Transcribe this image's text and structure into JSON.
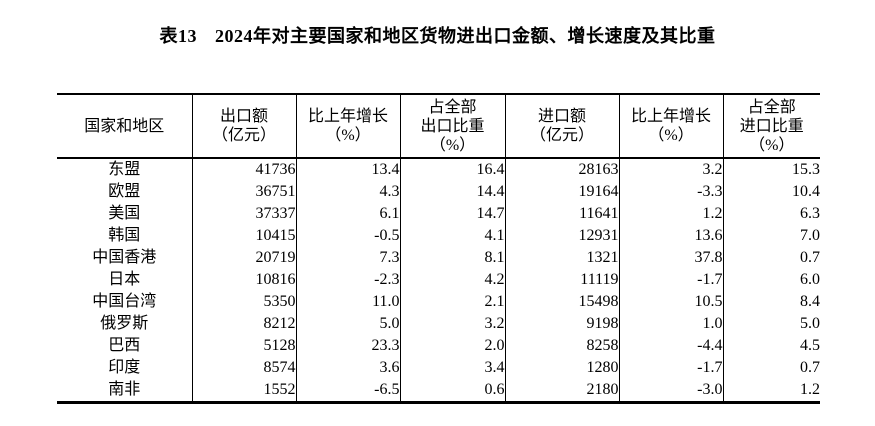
{
  "title": {
    "label": "表13",
    "text": "2024年对主要国家和地区货物进出口金额、增长速度及其比重"
  },
  "table": {
    "columns": [
      {
        "id": "region",
        "lines": [
          "国家和地区"
        ]
      },
      {
        "id": "export-value",
        "lines": [
          "出口额",
          "（亿元）"
        ]
      },
      {
        "id": "export-growth",
        "lines": [
          "比上年增长",
          "（%）"
        ]
      },
      {
        "id": "export-share",
        "lines": [
          "占全部",
          "出口比重",
          "（%）"
        ]
      },
      {
        "id": "import-value",
        "lines": [
          "进口额",
          "（亿元）"
        ]
      },
      {
        "id": "import-growth",
        "lines": [
          "比上年增长",
          "（%）"
        ]
      },
      {
        "id": "import-share",
        "lines": [
          "占全部",
          "进口比重",
          "（%）"
        ]
      }
    ],
    "rows": [
      [
        "东盟",
        "41736",
        "13.4",
        "16.4",
        "28163",
        "3.2",
        "15.3"
      ],
      [
        "欧盟",
        "36751",
        "4.3",
        "14.4",
        "19164",
        "-3.3",
        "10.4"
      ],
      [
        "美国",
        "37337",
        "6.1",
        "14.7",
        "11641",
        "1.2",
        "6.3"
      ],
      [
        "韩国",
        "10415",
        "-0.5",
        "4.1",
        "12931",
        "13.6",
        "7.0"
      ],
      [
        "中国香港",
        "20719",
        "7.3",
        "8.1",
        "1321",
        "37.8",
        "0.7"
      ],
      [
        "日本",
        "10816",
        "-2.3",
        "4.2",
        "11119",
        "-1.7",
        "6.0"
      ],
      [
        "中国台湾",
        "5350",
        "11.0",
        "2.1",
        "15498",
        "10.5",
        "8.4"
      ],
      [
        "俄罗斯",
        "8212",
        "5.0",
        "3.2",
        "9198",
        "1.0",
        "5.0"
      ],
      [
        "巴西",
        "5128",
        "23.3",
        "2.0",
        "8258",
        "-4.4",
        "4.5"
      ],
      [
        "印度",
        "8574",
        "3.6",
        "3.4",
        "1280",
        "-1.7",
        "0.7"
      ],
      [
        "南非",
        "1552",
        "-6.5",
        "0.6",
        "2180",
        "-3.0",
        "1.2"
      ]
    ]
  },
  "colors": {
    "text": "#000000",
    "border": "#000000",
    "background": "#ffffff"
  }
}
